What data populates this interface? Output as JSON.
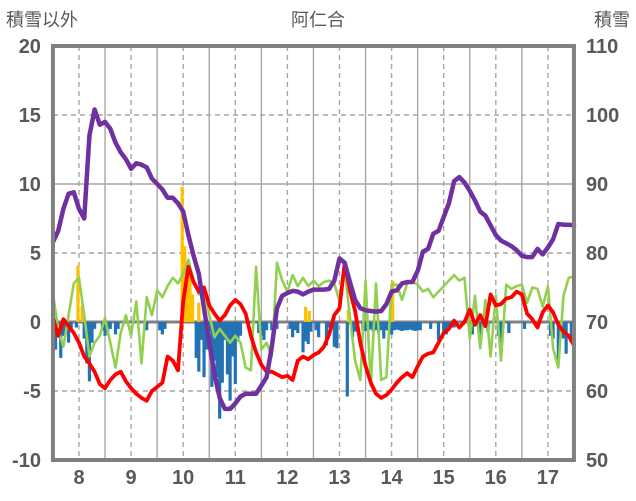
{
  "header": {
    "left_axis_title": "積雪以外",
    "chart_title": "阿仁合",
    "right_axis_title": "積雪"
  },
  "colors": {
    "background": "#ffffff",
    "text": "#595959",
    "frame": "#808080",
    "zero_line": "#808080",
    "gridline": "#a6a6a6",
    "purple_line": "#7030A0",
    "red_line": "#FF0000",
    "green_line": "#92D050",
    "blue_bars": "#2272B4",
    "orange_bars": "#FFC000"
  },
  "chart_data": {
    "type": "combo line+bar",
    "title": "阿仁合",
    "x_axis": {
      "min": 7.5,
      "max": 17.5,
      "tick_labels": [
        "8",
        "9",
        "10",
        "11",
        "12",
        "13",
        "14",
        "15",
        "16",
        "17"
      ],
      "tick_values": [
        8,
        9,
        10,
        11,
        12,
        13,
        14,
        15,
        16,
        17
      ],
      "dashed_gridlines_at": [
        8,
        9,
        10,
        11,
        12,
        13,
        14,
        15,
        16,
        17
      ],
      "solid_gridlines_at": [
        8.5,
        9.5,
        10.5,
        11.5,
        12.5,
        13.5,
        14.5,
        15.5,
        16.5
      ]
    },
    "left_axis": {
      "title": "積雪以外",
      "min": -10,
      "max": 20,
      "tick_labels": [
        "20",
        "15",
        "10",
        "5",
        "0",
        "-5",
        "-10"
      ],
      "tick_values": [
        20,
        15,
        10,
        5,
        0,
        -5,
        -10
      ],
      "solid_gridlines_at": [
        10
      ],
      "dashed_gridlines_at": [
        15,
        5,
        -5
      ],
      "zero_line_at": 0
    },
    "right_axis": {
      "title": "積雪",
      "min": 50,
      "max": 110,
      "tick_labels": [
        "110",
        "100",
        "90",
        "80",
        "70",
        "60",
        "50"
      ],
      "tick_values": [
        110,
        100,
        90,
        80,
        70,
        60,
        50
      ]
    },
    "series": [
      {
        "id": "blue-bars",
        "type": "bar",
        "axis": "left",
        "color": "#2272B4",
        "bar_width": 3.2,
        "points": [
          [
            7.5,
            -1.2
          ],
          [
            7.55,
            -2.0
          ],
          [
            7.6,
            -0.8
          ],
          [
            7.65,
            -2.6
          ],
          [
            7.7,
            -1.0
          ],
          [
            7.75,
            -0.5
          ],
          [
            7.8,
            -1.5
          ],
          [
            7.85,
            -0.6
          ],
          [
            7.95,
            -0.4
          ],
          [
            8.1,
            -1.2
          ],
          [
            8.15,
            -3.0
          ],
          [
            8.2,
            -4.3
          ],
          [
            8.25,
            -1.5
          ],
          [
            8.3,
            -0.5
          ],
          [
            8.45,
            -0.6
          ],
          [
            8.5,
            -1.0
          ],
          [
            8.55,
            -0.7
          ],
          [
            8.6,
            -0.5
          ],
          [
            8.7,
            -0.9
          ],
          [
            8.75,
            -0.5
          ],
          [
            9.3,
            -0.6
          ],
          [
            9.55,
            -0.6
          ],
          [
            9.6,
            -0.9
          ],
          [
            9.65,
            -0.5
          ],
          [
            10.25,
            -2.6
          ],
          [
            10.3,
            -3.6
          ],
          [
            10.35,
            -1.3
          ],
          [
            10.4,
            -4.0
          ],
          [
            10.45,
            -2.0
          ],
          [
            10.5,
            -0.7
          ],
          [
            10.55,
            -4.7
          ],
          [
            10.6,
            -2.8
          ],
          [
            10.65,
            -4.0
          ],
          [
            10.7,
            -7.0
          ],
          [
            10.75,
            -4.4
          ],
          [
            10.8,
            -1.3
          ],
          [
            10.85,
            -3.8
          ],
          [
            10.9,
            -5.7
          ],
          [
            10.95,
            -2.5
          ],
          [
            11.0,
            -4.5
          ],
          [
            11.05,
            -1.4
          ],
          [
            11.1,
            -1.0
          ],
          [
            11.45,
            -0.8
          ],
          [
            11.5,
            -1.0
          ],
          [
            11.55,
            -1.3
          ],
          [
            11.6,
            -0.6
          ],
          [
            11.7,
            -0.6
          ],
          [
            11.8,
            -0.5
          ],
          [
            12.05,
            -0.5
          ],
          [
            12.1,
            -1.1
          ],
          [
            12.15,
            -0.6
          ],
          [
            12.2,
            -0.8
          ],
          [
            12.3,
            -2.2
          ],
          [
            12.35,
            -1.4
          ],
          [
            12.4,
            -1.6
          ],
          [
            12.45,
            -0.7
          ],
          [
            12.55,
            -0.6
          ],
          [
            12.6,
            -1.1
          ],
          [
            12.75,
            -1.7
          ],
          [
            12.8,
            -0.4
          ],
          [
            12.9,
            -1.8
          ],
          [
            12.95,
            -1.9
          ],
          [
            13.15,
            -5.4
          ],
          [
            13.25,
            -1.1
          ],
          [
            13.3,
            -0.7
          ],
          [
            13.45,
            -0.6
          ],
          [
            13.5,
            -0.65
          ],
          [
            13.55,
            -0.6
          ],
          [
            13.6,
            -0.55
          ],
          [
            13.65,
            -0.7
          ],
          [
            13.7,
            -0.6
          ],
          [
            13.75,
            -0.8
          ],
          [
            13.8,
            -0.6
          ],
          [
            13.85,
            -1.2
          ],
          [
            13.9,
            -0.6
          ],
          [
            13.95,
            -0.65
          ],
          [
            14.0,
            -0.9
          ],
          [
            14.05,
            -0.6
          ],
          [
            14.1,
            -0.55
          ],
          [
            14.15,
            -0.6
          ],
          [
            14.2,
            -0.65
          ],
          [
            14.25,
            -0.6
          ],
          [
            14.3,
            -0.6
          ],
          [
            14.35,
            -0.55
          ],
          [
            14.4,
            -0.6
          ],
          [
            14.45,
            -0.65
          ],
          [
            14.5,
            -0.6
          ],
          [
            14.55,
            -0.6
          ],
          [
            14.75,
            -0.5
          ],
          [
            14.9,
            -1.3
          ],
          [
            15.0,
            -0.7
          ],
          [
            15.05,
            -0.9
          ],
          [
            15.1,
            -0.5
          ],
          [
            15.15,
            -0.4
          ],
          [
            15.2,
            -0.4
          ],
          [
            15.55,
            -0.9
          ],
          [
            15.7,
            -1.5
          ],
          [
            15.85,
            -0.7
          ],
          [
            16.05,
            -1.0
          ],
          [
            16.1,
            -2.0
          ],
          [
            16.25,
            -0.8
          ],
          [
            16.55,
            -0.5
          ],
          [
            17.05,
            -1.0
          ],
          [
            17.1,
            -1.2
          ],
          [
            17.2,
            -3.0
          ],
          [
            17.3,
            -1.2
          ],
          [
            17.35,
            -2.3
          ],
          [
            17.45,
            -1.5
          ]
        ]
      },
      {
        "id": "orange-bars",
        "type": "bar",
        "axis": "left",
        "color": "#FFC000",
        "bar_width": 3.2,
        "points": [
          [
            7.98,
            4.1
          ],
          [
            8.06,
            1.2
          ],
          [
            9.98,
            9.8
          ],
          [
            10.03,
            5.5
          ],
          [
            10.08,
            4.2
          ],
          [
            10.13,
            3.3
          ],
          [
            10.18,
            2.0
          ],
          [
            10.3,
            1.4
          ],
          [
            12.35,
            1.1
          ],
          [
            12.42,
            0.8
          ],
          [
            13.17,
            0.9
          ],
          [
            14.02,
            3.0
          ]
        ]
      },
      {
        "id": "green-line",
        "type": "line",
        "axis": "left",
        "color": "#92D050",
        "width": 2.6,
        "x_start": 7.5,
        "x_step": 0.1,
        "values": [
          2.0,
          -0.5,
          -1.8,
          0.5,
          2.8,
          3.2,
          0.5,
          -2.5,
          -1.5,
          -1.0,
          0.3,
          -1.5,
          -3.3,
          -0.8,
          0.5,
          -1.0,
          1.5,
          -3.0,
          1.8,
          0.5,
          2.3,
          1.8,
          2.6,
          3.2,
          2.8,
          3.5,
          4.5,
          3.0,
          2.0,
          2.5,
          0.5,
          -1.1,
          -0.5,
          -1.0,
          -1.5,
          -1.0,
          -1.5,
          -3.3,
          -3.5,
          4.0,
          -2.0,
          -1.5,
          -2.5,
          4.3,
          3.0,
          2.2,
          3.4,
          2.6,
          3.2,
          2.6,
          3.0,
          2.6,
          2.9,
          3.0,
          2.8,
          1.5,
          3.8,
          0.4,
          -2.8,
          -4.2,
          3.0,
          -4.6,
          2.8,
          -4.2,
          -4.0,
          2.7,
          2.7,
          1.6,
          2.8,
          2.9,
          2.7,
          2.2,
          2.4,
          1.8,
          2.2,
          2.6,
          3.0,
          3.4,
          3.0,
          3.2,
          -1.2,
          1.9,
          -1.9,
          1.6,
          -2.5,
          1.9,
          -2.8,
          2.7,
          2.4,
          2.6,
          2.7,
          1.4,
          2.5,
          2.4,
          1.1,
          2.6,
          -1.9,
          -3.3,
          1.9,
          3.2,
          3.3
        ]
      },
      {
        "id": "red-line",
        "type": "line",
        "axis": "left",
        "color": "#FF0000",
        "width": 3.8,
        "x_start": 7.5,
        "x_step": 0.1,
        "values": [
          0.3,
          -1.0,
          0.2,
          -0.3,
          -0.8,
          -1.5,
          -2.5,
          -3.0,
          -3.6,
          -4.5,
          -4.8,
          -4.2,
          -3.8,
          -3.6,
          -4.3,
          -4.8,
          -5.2,
          -5.5,
          -5.7,
          -5.0,
          -4.7,
          -4.4,
          -2.5,
          -2.8,
          -3.5,
          1.5,
          4.0,
          2.9,
          2.2,
          2.5,
          1.2,
          0.6,
          0.1,
          0.5,
          1.2,
          1.6,
          1.3,
          0.6,
          -1.0,
          -2.2,
          -3.1,
          -3.6,
          -3.6,
          -3.8,
          -4.0,
          -3.9,
          -4.2,
          -2.8,
          -2.5,
          -2.7,
          -2.4,
          -2.2,
          -1.8,
          -0.9,
          0.5,
          1.0,
          4.3,
          2.3,
          0.8,
          -1.5,
          -3.2,
          -4.4,
          -5.2,
          -5.5,
          -5.3,
          -4.9,
          -4.4,
          -4.0,
          -3.7,
          -4.0,
          -3.2,
          -2.5,
          -2.3,
          -2.2,
          -1.5,
          -0.8,
          -0.5,
          0.1,
          -0.4,
          0.0,
          0.9,
          -0.2,
          0.5,
          -0.3,
          2.0,
          1.2,
          1.3,
          1.7,
          1.8,
          2.2,
          2.0,
          0.6,
          0.2,
          -0.4,
          0.7,
          1.2,
          0.7,
          -0.2,
          -0.7,
          -1.0,
          -1.7
        ]
      },
      {
        "id": "purple-line",
        "type": "line",
        "axis": "right",
        "color": "#7030A0",
        "width": 4.5,
        "x_start": 7.5,
        "x_step": 0.1,
        "values": [
          81.6,
          83.2,
          86.4,
          88.6,
          88.8,
          86.4,
          85.0,
          97.0,
          100.8,
          98.6,
          99.0,
          98.0,
          96.0,
          94.6,
          93.6,
          92.2,
          93.0,
          92.8,
          92.4,
          90.8,
          90.0,
          89.2,
          88.0,
          88.0,
          87.2,
          86.0,
          82.6,
          79.6,
          77.0,
          72.0,
          67.0,
          62.4,
          59.0,
          57.4,
          57.4,
          58.2,
          59.2,
          59.6,
          59.6,
          59.6,
          60.8,
          62.0,
          66.4,
          72.0,
          73.8,
          74.2,
          74.5,
          74.4,
          74.0,
          74.4,
          74.7,
          74.7,
          74.7,
          74.8,
          76.0,
          79.2,
          78.6,
          75.8,
          73.2,
          72.0,
          71.7,
          71.6,
          71.5,
          71.6,
          72.6,
          74.4,
          74.6,
          75.6,
          75.8,
          75.8,
          77.4,
          80.2,
          80.6,
          82.8,
          83.2,
          85.2,
          87.2,
          90.4,
          91.0,
          90.2,
          89.0,
          87.6,
          86.0,
          85.4,
          84.0,
          82.6,
          81.8,
          81.4,
          81.0,
          80.4,
          79.6,
          79.4,
          79.4,
          80.6,
          79.8,
          80.8,
          82.0,
          84.2,
          84.1,
          84.1,
          84.0
        ]
      }
    ]
  }
}
